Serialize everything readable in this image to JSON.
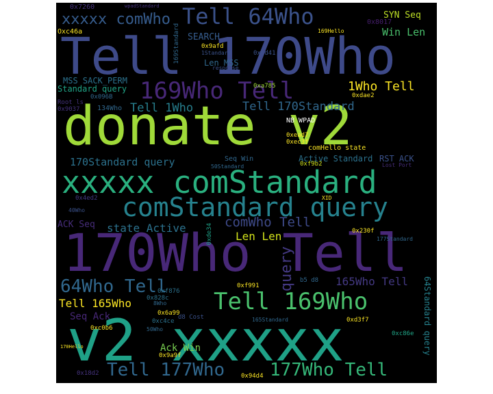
{
  "palette": {
    "background": "#000000",
    "purple": "#440154",
    "indigo": "#46337e",
    "blue": "#365c8d",
    "teal": "#277f8e",
    "green": "#1fa187",
    "lightgreen": "#4ac16d",
    "lime": "#a0da39",
    "yellow": "#fde725"
  },
  "words": [
    {
      "text": "donate v2",
      "color": "#a0da39"
    },
    {
      "text": "170Who Tell",
      "color": "#482878"
    },
    {
      "text": "Tell 170Who",
      "color": "#3e4a89"
    },
    {
      "text": "v2 xxxxx",
      "color": "#1fa187"
    },
    {
      "text": "xxxxx comStandard",
      "color": "#2ab07f"
    },
    {
      "text": "comStandard query",
      "color": "#26828e"
    },
    {
      "text": "Tell 64Who",
      "color": "#3b528b"
    },
    {
      "text": "xxxxx comWho",
      "color": "#365c8d"
    },
    {
      "text": "169Who Tell",
      "color": "#482878"
    },
    {
      "text": "Tell 169Who",
      "color": "#4ac16d"
    },
    {
      "text": "64Who Tell",
      "color": "#31688e"
    },
    {
      "text": "Tell 177Who",
      "color": "#31688e"
    },
    {
      "text": "177Who Tell",
      "color": "#35b779"
    },
    {
      "text": "1Who Tell",
      "color": "#fde725"
    },
    {
      "text": "Tell 1Who",
      "color": "#277f8e"
    },
    {
      "text": "Tell 170Standard",
      "color": "#31688e"
    },
    {
      "text": "170Standard query",
      "color": "#2c728e"
    },
    {
      "text": "comWho Tell",
      "color": "#3e4a89"
    },
    {
      "text": "state Active",
      "color": "#2c728e"
    },
    {
      "text": "Len Len",
      "color": "#d2e21b"
    },
    {
      "text": "query",
      "color": "#443983"
    },
    {
      "text": "165Who Tell",
      "color": "#443983"
    },
    {
      "text": "Tell 165Who",
      "color": "#fde725"
    },
    {
      "text": "Seq Ack",
      "color": "#482878"
    },
    {
      "text": "Ack Win",
      "color": "#7ad151"
    },
    {
      "text": "Win Len",
      "color": "#4ac16d"
    },
    {
      "text": "SYN Seq",
      "color": "#bddf26"
    },
    {
      "text": "SEARCH",
      "color": "#365c8d"
    },
    {
      "text": "Len MSS",
      "color": "#31688e"
    },
    {
      "text": "MSS SACK_PERM",
      "color": "#2c728e"
    },
    {
      "text": "Standard query",
      "color": "#20a486"
    },
    {
      "text": "ACK Seq",
      "color": "#472d7b"
    },
    {
      "text": "Active Standard",
      "color": "#2c728e"
    },
    {
      "text": "RST ACK",
      "color": "#3b528b"
    },
    {
      "text": "64Standard query",
      "color": "#26828e"
    },
    {
      "text": "NB WPAD",
      "color": "#ffffff"
    },
    {
      "text": "comHello state",
      "color": "#fde725"
    },
    {
      "text": "Seq Win",
      "color": "#31688e"
    },
    {
      "text": "134Who",
      "color": "#31688e"
    },
    {
      "text": "Root ls",
      "color": "#46337e"
    },
    {
      "text": "0x7260",
      "color": "#46337e"
    },
    {
      "text": "wpadStandard",
      "color": "#46337e"
    },
    {
      "text": "Oxc46a",
      "color": "#fde725"
    },
    {
      "text": "0x8017",
      "color": "#481f70"
    },
    {
      "text": "169Hello",
      "color": "#fde725"
    },
    {
      "text": "0x9afd",
      "color": "#fde725"
    },
    {
      "text": "0xcd41",
      "color": "#3b528b"
    },
    {
      "text": "0xa785",
      "color": "#a0da39"
    },
    {
      "text": "0xdae2",
      "color": "#fde725"
    },
    {
      "text": "0x096B",
      "color": "#31688e"
    },
    {
      "text": "0x9037",
      "color": "#46337e"
    },
    {
      "text": "0xead7",
      "color": "#fde725"
    },
    {
      "text": "0xec3f",
      "color": "#fde725"
    },
    {
      "text": "0xf9b2",
      "color": "#d2e21b"
    },
    {
      "text": "0x4ed2",
      "color": "#443983"
    },
    {
      "text": "0x230f",
      "color": "#fde725"
    },
    {
      "text": "0xde34",
      "color": "#1fa187"
    },
    {
      "text": "0xf991",
      "color": "#fde725"
    },
    {
      "text": "0xf876",
      "color": "#2c728e"
    },
    {
      "text": "0x828c",
      "color": "#2c728e"
    },
    {
      "text": "0x6a99",
      "color": "#fde725"
    },
    {
      "text": "0xc4ce",
      "color": "#2c728e"
    },
    {
      "text": "0xc0b6",
      "color": "#fde725"
    },
    {
      "text": "0x9a9f",
      "color": "#fde725"
    },
    {
      "text": "0xd3f7",
      "color": "#fde725"
    },
    {
      "text": "0xc86e",
      "color": "#20a486"
    },
    {
      "text": "0x18d2",
      "color": "#46337e"
    },
    {
      "text": "0x94d4",
      "color": "#fde725"
    },
    {
      "text": "b5 d8",
      "color": "#31688e"
    },
    {
      "text": "d8 Cost",
      "color": "#3b528b"
    },
    {
      "text": "165Standard",
      "color": "#31688e"
    },
    {
      "text": "177Standard",
      "color": "#31688e"
    },
    {
      "text": "50Standard",
      "color": "#31688e"
    },
    {
      "text": "50Who",
      "color": "#31688e"
    },
    {
      "text": "40Who",
      "color": "#3b528b"
    },
    {
      "text": "8Who",
      "color": "#31688e"
    },
    {
      "text": "Lost Port",
      "color": "#472d7b"
    },
    {
      "text": "XID",
      "color": "#fde725"
    },
    {
      "text": "response",
      "color": "#3b528b"
    },
    {
      "text": "169Standard",
      "color": "#31688e"
    },
    {
      "text": "1Standard",
      "color": "#3b528b"
    },
    {
      "text": "170Hello",
      "color": "#fde725"
    }
  ]
}
